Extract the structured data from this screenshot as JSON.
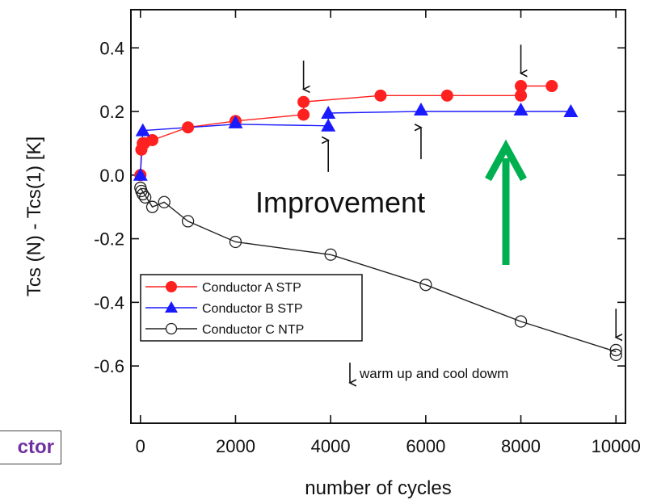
{
  "chart_data": {
    "type": "line",
    "xlabel": "number of cycles",
    "ylabel": "Tcs (N) - Tcs(1) [K]",
    "xlim": [
      -200,
      10200
    ],
    "ylim": [
      -0.78,
      0.52
    ],
    "xticks": [
      0,
      2000,
      4000,
      6000,
      8000,
      10000
    ],
    "yticks": [
      0.4,
      0.2,
      0.0,
      -0.2,
      -0.4,
      -0.6
    ],
    "ytick_labels": [
      "0.4",
      "0.2",
      "0.0",
      "-0.2",
      "-0.4",
      "-0.6"
    ],
    "grid": false,
    "legend_position": "bottom-left",
    "series": [
      {
        "name": "Conductor A STP",
        "color": "#ff2020",
        "marker": "filled-circle",
        "x": [
          0,
          20,
          50,
          80,
          250,
          1000,
          2000,
          3430,
          3430,
          5050,
          6450,
          8000,
          8000,
          8650
        ],
        "y": [
          0.0,
          0.08,
          0.1,
          0.1,
          0.11,
          0.15,
          0.17,
          0.19,
          0.23,
          0.25,
          0.25,
          0.25,
          0.28,
          0.28
        ],
        "line_x": [
          0,
          20,
          80,
          250,
          1000,
          2000,
          3430,
          3430,
          5050,
          6450,
          8000,
          8000,
          8650
        ],
        "line_y": [
          0.0,
          0.08,
          0.1,
          0.11,
          0.15,
          0.17,
          0.19,
          0.23,
          0.25,
          0.25,
          0.25,
          0.28,
          0.28
        ]
      },
      {
        "name": "Conductor B STP",
        "color": "#1a1aff",
        "marker": "filled-triangle",
        "x": [
          0,
          50,
          2000,
          3950,
          3950,
          5900,
          8000,
          9050
        ],
        "y": [
          0.0,
          0.14,
          0.165,
          0.155,
          0.195,
          0.205,
          0.205,
          0.2
        ],
        "line_x": [
          0,
          50,
          2000,
          3950,
          3950,
          5900,
          8000,
          9050
        ],
        "line_y": [
          0.0,
          0.14,
          0.16,
          0.155,
          0.195,
          0.2,
          0.2,
          0.2
        ]
      },
      {
        "name": "Conductor C NTP",
        "color": "#222222",
        "marker": "open-circle",
        "x": [
          0,
          20,
          50,
          100,
          250,
          500,
          1000,
          2000,
          4000,
          6000,
          8000,
          10000,
          10000
        ],
        "y": [
          -0.04,
          -0.05,
          -0.06,
          -0.07,
          -0.1,
          -0.085,
          -0.145,
          -0.21,
          -0.25,
          -0.345,
          -0.46,
          -0.55,
          -0.565
        ],
        "line_x": [
          0,
          250,
          500,
          1000,
          2000,
          4000,
          6000,
          8000,
          10000
        ],
        "line_y": [
          -0.04,
          -0.1,
          -0.085,
          -0.145,
          -0.21,
          -0.25,
          -0.345,
          -0.46,
          -0.555
        ]
      }
    ],
    "arrows": [
      {
        "x": 3430,
        "tail_y": 0.36,
        "head_y": 0.27
      },
      {
        "x": 8000,
        "tail_y": 0.41,
        "head_y": 0.32
      },
      {
        "x": 3950,
        "tail_y": 0.01,
        "head_y": 0.11
      },
      {
        "x": 5900,
        "tail_y": 0.05,
        "head_y": 0.15
      },
      {
        "x": 10000,
        "tail_y": -0.42,
        "head_y": -0.51
      }
    ],
    "annotations": {
      "improvement_text": "Improvement",
      "improvement_arrow_color": "#00b050",
      "warm_note": "warm up and cool dowm"
    }
  },
  "fragment": {
    "text": "ctor"
  }
}
